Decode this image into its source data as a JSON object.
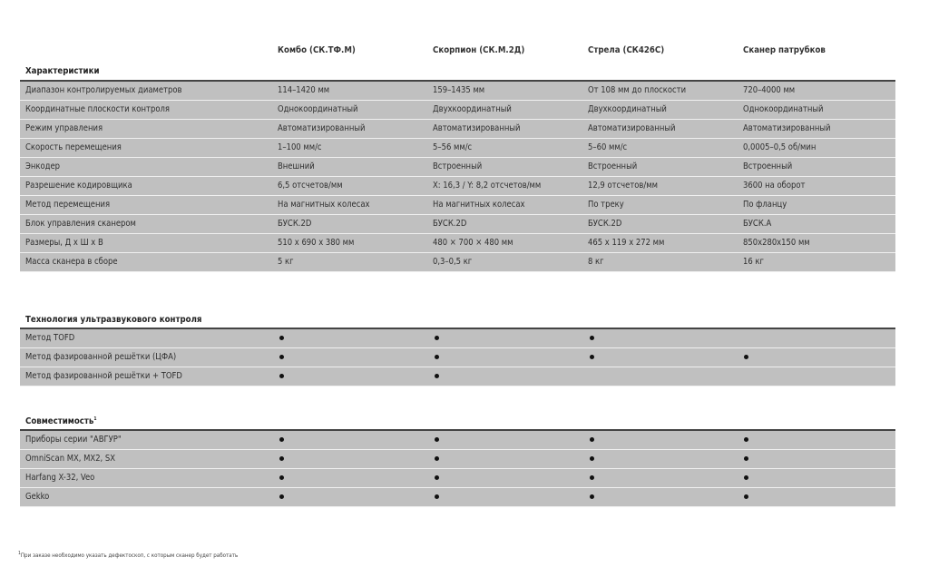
{
  "columns": [
    "Комбо (СК.ТФ.М)",
    "Скорпион (СК.М.2Д)",
    "Стрела (СК426С)",
    "Сканер патрубков"
  ],
  "characteristics": {
    "title": "Характеристики",
    "rows": [
      {
        "label": "Диапазон контролируемых диаметров",
        "values": [
          "114–1420 мм",
          "159–1435 мм",
          "От 108 мм до плоскости",
          "720–4000 мм"
        ]
      },
      {
        "label": "Координатные плоскости контроля",
        "values": [
          "Однокоординатный",
          "Двухкоординатный",
          "Двухкоординатный",
          "Однокоординатный"
        ]
      },
      {
        "label": "Режим управления",
        "values": [
          "Автоматизированный",
          "Автоматизированный",
          "Автоматизированный",
          "Автоматизированный"
        ]
      },
      {
        "label": "Скорость перемещения",
        "values": [
          "1–100 мм/с",
          "5–56 мм/с",
          "5–60 мм/с",
          "0,0005–0,5 об/мин"
        ]
      },
      {
        "label": "Энкодер",
        "values": [
          "Внешний",
          "Встроенный",
          "Встроенный",
          "Встроенный"
        ]
      },
      {
        "label": "Разрешение кодировщика",
        "values": [
          "6,5 отсчетов/мм",
          "X: 16,3 / Y: 8,2 отсчетов/мм",
          "12,9 отсчетов/мм",
          "3600 на оборот"
        ]
      },
      {
        "label": "Метод перемещения",
        "values": [
          "На магнитных колесах",
          "На магнитных колесах",
          "По треку",
          "По фланцу"
        ]
      },
      {
        "label": "Блок управления сканером",
        "values": [
          "БУСК.2D",
          "БУСК.2D",
          "БУСК.2D",
          "БУСК.А"
        ]
      },
      {
        "label": "Размеры, Д х Ш х В",
        "values": [
          "510 х 690 х 380 мм",
          "480 × 700 × 480 мм",
          "465 х 119 х 272  мм",
          "850х280х150 мм"
        ]
      },
      {
        "label": "Масса сканера в сборе",
        "values": [
          "5 кг",
          "0,3–0,5 кг",
          "8 кг",
          "16 кг"
        ]
      }
    ]
  },
  "technology": {
    "title": "Технология ультразвукового контроля",
    "rows": [
      {
        "label": "Метод TOFD",
        "marks": [
          true,
          true,
          true,
          false
        ]
      },
      {
        "label": "Метод фазированной решётки (ЦФА)",
        "marks": [
          true,
          true,
          true,
          true
        ]
      },
      {
        "label": "Метод фазированной решётки + TOFD",
        "marks": [
          true,
          true,
          false,
          false
        ]
      }
    ]
  },
  "compatibility": {
    "title": "Совместимость",
    "footnote_mark": "1",
    "rows": [
      {
        "label": "Приборы серии \"АВГУР\"",
        "marks": [
          true,
          true,
          true,
          true
        ]
      },
      {
        "label": "OmniScan MX, MX2, SX",
        "marks": [
          true,
          true,
          true,
          true
        ]
      },
      {
        "label": "Harfang X-32, Veo",
        "marks": [
          true,
          true,
          true,
          true
        ]
      },
      {
        "label": "Gekko",
        "marks": [
          true,
          true,
          true,
          true
        ]
      }
    ]
  },
  "footnote": {
    "mark": "1",
    "text": "При заказе необходимо указать дефектоскоп, с которым сканер будет работать"
  },
  "colors": {
    "row_background": "#c0c0c0",
    "rule": "#444444",
    "bullet": "#111111"
  }
}
